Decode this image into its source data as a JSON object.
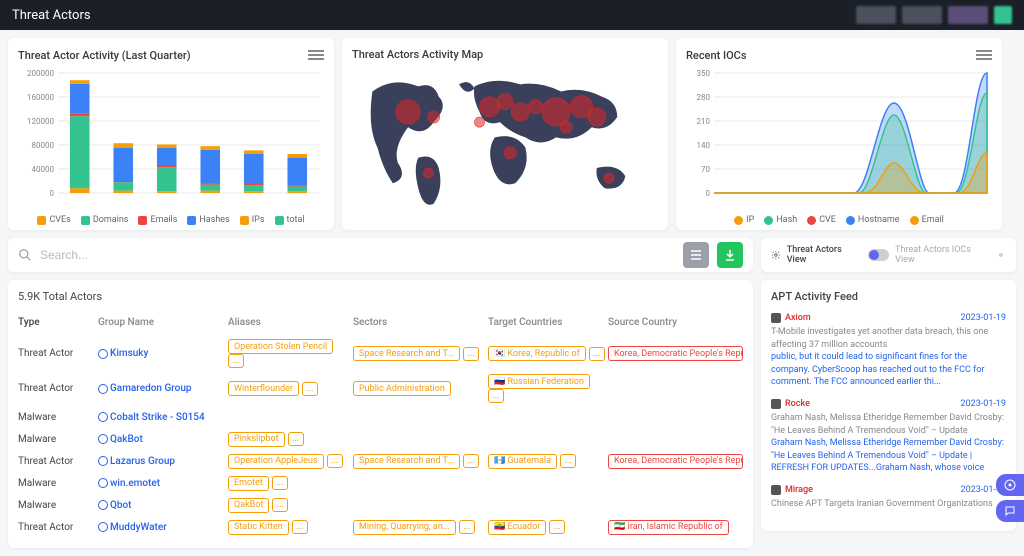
{
  "page": {
    "title": "Threat Actors"
  },
  "chart_activity": {
    "title": "Threat Actor Activity (Last Quarter)",
    "type": "stacked-bar",
    "ymax": 200000,
    "ytick_step": 40000,
    "yticks": [
      "0",
      "40000",
      "80000",
      "120000",
      "160000",
      "200000"
    ],
    "categories": [
      "",
      "",
      "",
      "",
      "",
      ""
    ],
    "series": [
      {
        "name": "CVEs",
        "color": "#f59e0b",
        "values": [
          8000,
          4000,
          3000,
          4000,
          3000,
          3000
        ]
      },
      {
        "name": "Domains",
        "color": "#34c38f",
        "values": [
          120000,
          14000,
          40000,
          10000,
          10000,
          8000
        ]
      },
      {
        "name": "Emails",
        "color": "#ef4444",
        "values": [
          4000,
          2000,
          2000,
          2000,
          2000,
          2000
        ]
      },
      {
        "name": "Hashes",
        "color": "#3b82f6",
        "values": [
          50000,
          55000,
          30000,
          56000,
          50000,
          46000
        ]
      },
      {
        "name": "IPs",
        "color": "#f59e0b",
        "values": [
          6000,
          8000,
          6000,
          6000,
          6000,
          6000
        ]
      },
      {
        "name": "total",
        "color": "#34c38f",
        "values": [
          0,
          0,
          0,
          0,
          0,
          0
        ]
      }
    ],
    "background": "#ffffff",
    "grid_color": "#e8e8e8"
  },
  "chart_map": {
    "title": "Threat Actors Activity Map",
    "land_color": "#3a3f5c",
    "ocean_color": "#f5f6f8",
    "bubble_color": "#dc2626"
  },
  "chart_iocs": {
    "title": "Recent IOCs",
    "type": "area",
    "ymax": 350,
    "ytick_step": 70,
    "yticks": [
      "0",
      "70",
      "140",
      "210",
      "280",
      "350"
    ],
    "series": [
      {
        "name": "IP",
        "color": "#f59e0b"
      },
      {
        "name": "Hash",
        "color": "#34c38f"
      },
      {
        "name": "CVE",
        "color": "#ef4444"
      },
      {
        "name": "Hostname",
        "color": "#3b82f6"
      },
      {
        "name": "Email",
        "color": "#f59e0b"
      }
    ],
    "grid_color": "#e8e8e8"
  },
  "search": {
    "placeholder": "Search..."
  },
  "buttons": {
    "bars_btn_bg": "#9aa0a8",
    "download_btn_bg": "#22c55e"
  },
  "view_toggle": {
    "left": "Threat Actors View",
    "right": "Threat Actors IOCs View"
  },
  "table": {
    "total_label": "5.9K Total Actors",
    "columns": [
      "Type",
      "Group Name",
      "Aliases",
      "Sectors",
      "Target Countries",
      "Source Country"
    ],
    "rows": [
      {
        "type": "Threat Actor",
        "group": "Kimsuky",
        "aliases": [
          "Operation Stolen Pencil",
          "..."
        ],
        "sectors": [
          "Space Research and T...",
          "..."
        ],
        "targets": [
          "🇰🇷 Korea, Republic of",
          "..."
        ],
        "source": "Korea, Democratic People's Republic of"
      },
      {
        "type": "Threat Actor",
        "group": "Gamaredon Group",
        "aliases": [
          "Winterflounder",
          "..."
        ],
        "sectors": [
          "Public Administration"
        ],
        "targets": [
          "🇷🇺 Russian Federation",
          "..."
        ],
        "source": ""
      },
      {
        "type": "Malware",
        "group": "Cobalt Strike - S0154",
        "aliases": [],
        "sectors": [],
        "targets": [],
        "source": ""
      },
      {
        "type": "Malware",
        "group": "QakBot",
        "aliases": [
          "Pinkslipbot",
          "..."
        ],
        "sectors": [],
        "targets": [],
        "source": ""
      },
      {
        "type": "Threat Actor",
        "group": "Lazarus Group",
        "aliases": [
          "Operation AppleJeus",
          "..."
        ],
        "sectors": [
          "Space Research and T...",
          "..."
        ],
        "targets": [
          "🇬🇹 Guatemala",
          "..."
        ],
        "source": "Korea, Democratic People's Republic of"
      },
      {
        "type": "Malware",
        "group": "win.emotet",
        "aliases": [
          "Emotet",
          "..."
        ],
        "sectors": [],
        "targets": [],
        "source": ""
      },
      {
        "type": "Malware",
        "group": "Qbot",
        "aliases": [
          "QakBot",
          "..."
        ],
        "sectors": [],
        "targets": [],
        "source": ""
      },
      {
        "type": "Threat Actor",
        "group": "MuddyWater",
        "aliases": [
          "Static Kitten",
          "..."
        ],
        "sectors": [
          "Mining, Quarrying, an...",
          "..."
        ],
        "targets": [
          "🇪🇨 Ecuador",
          "..."
        ],
        "source": "🇮🇷 Iran, Islamic Republic of"
      }
    ]
  },
  "feed": {
    "title": "APT Activity Feed",
    "items": [
      {
        "name": "Axiom",
        "date": "2023-01-19",
        "sub": "T-Mobile investigates yet another data breach, this one affecting 37 million accounts",
        "link": "public, but it could lead to significant fines for the company. CyberScoop has reached out to the FCC for comment. The FCC announced earlier thi..."
      },
      {
        "name": "Rocke",
        "date": "2023-01-19",
        "sub": "Graham Nash, Melissa Etheridge Remember David Crosby: \"He Leaves Behind A Tremendous Void\" – Update",
        "link": "Graham Nash, Melissa Etheridge Remember David Crosby: \"He Leaves Behind A Tremendous Void\" – Update | REFRESH FOR UPDATES...Graham Nash, whose voice"
      },
      {
        "name": "Mirage",
        "date": "2023-01-19",
        "sub": "Chinese APT Targets Iranian Government Organizations",
        "link": ""
      }
    ]
  }
}
